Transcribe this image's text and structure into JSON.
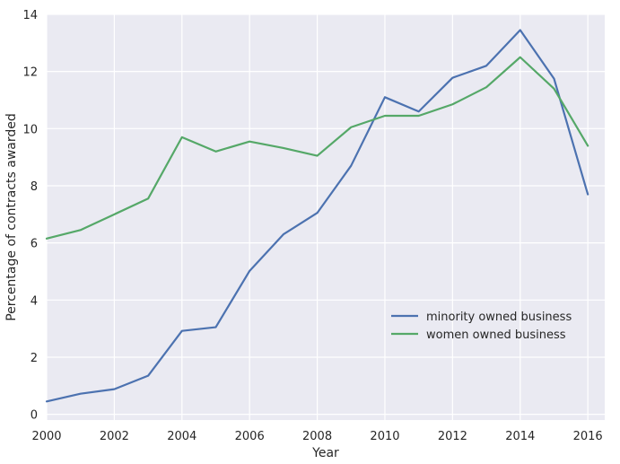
{
  "chart_data": {
    "type": "line",
    "title": "",
    "xlabel": "Year",
    "ylabel": "Percentage of contracts awarded",
    "xlim": [
      2000,
      2016.5
    ],
    "ylim": [
      -0.2,
      14
    ],
    "grid": true,
    "legend_position": "lower-right",
    "x_ticks": [
      2000,
      2002,
      2004,
      2006,
      2008,
      2010,
      2012,
      2014,
      2016
    ],
    "x_tick_labels": [
      "2000",
      "2002",
      "2004",
      "2006",
      "2008",
      "2010",
      "2012",
      "2014",
      "2016"
    ],
    "y_ticks": [
      0,
      2,
      4,
      6,
      8,
      10,
      12,
      14
    ],
    "y_tick_labels": [
      "0",
      "2",
      "4",
      "6",
      "8",
      "10",
      "12",
      "14"
    ],
    "x": [
      2000,
      2001,
      2002,
      2003,
      2004,
      2005,
      2006,
      2007,
      2008,
      2009,
      2010,
      2011,
      2012,
      2013,
      2014,
      2015,
      2016
    ],
    "series": [
      {
        "name": "minority owned business",
        "color": "#4c72b0",
        "values": [
          0.45,
          0.72,
          0.88,
          1.35,
          2.92,
          3.05,
          5.02,
          6.3,
          7.05,
          8.7,
          11.1,
          10.6,
          11.78,
          12.2,
          13.45,
          11.75,
          7.7
        ]
      },
      {
        "name": "women owned business",
        "color": "#55a868",
        "values": [
          6.15,
          6.45,
          7.0,
          7.55,
          9.7,
          9.2,
          9.55,
          9.32,
          9.05,
          10.05,
          10.45,
          10.45,
          10.85,
          11.45,
          12.5,
          11.4,
          9.4
        ]
      }
    ],
    "colors": {
      "plot_background": "#eaeaf2",
      "grid": "#ffffff",
      "text": "#262626"
    }
  }
}
